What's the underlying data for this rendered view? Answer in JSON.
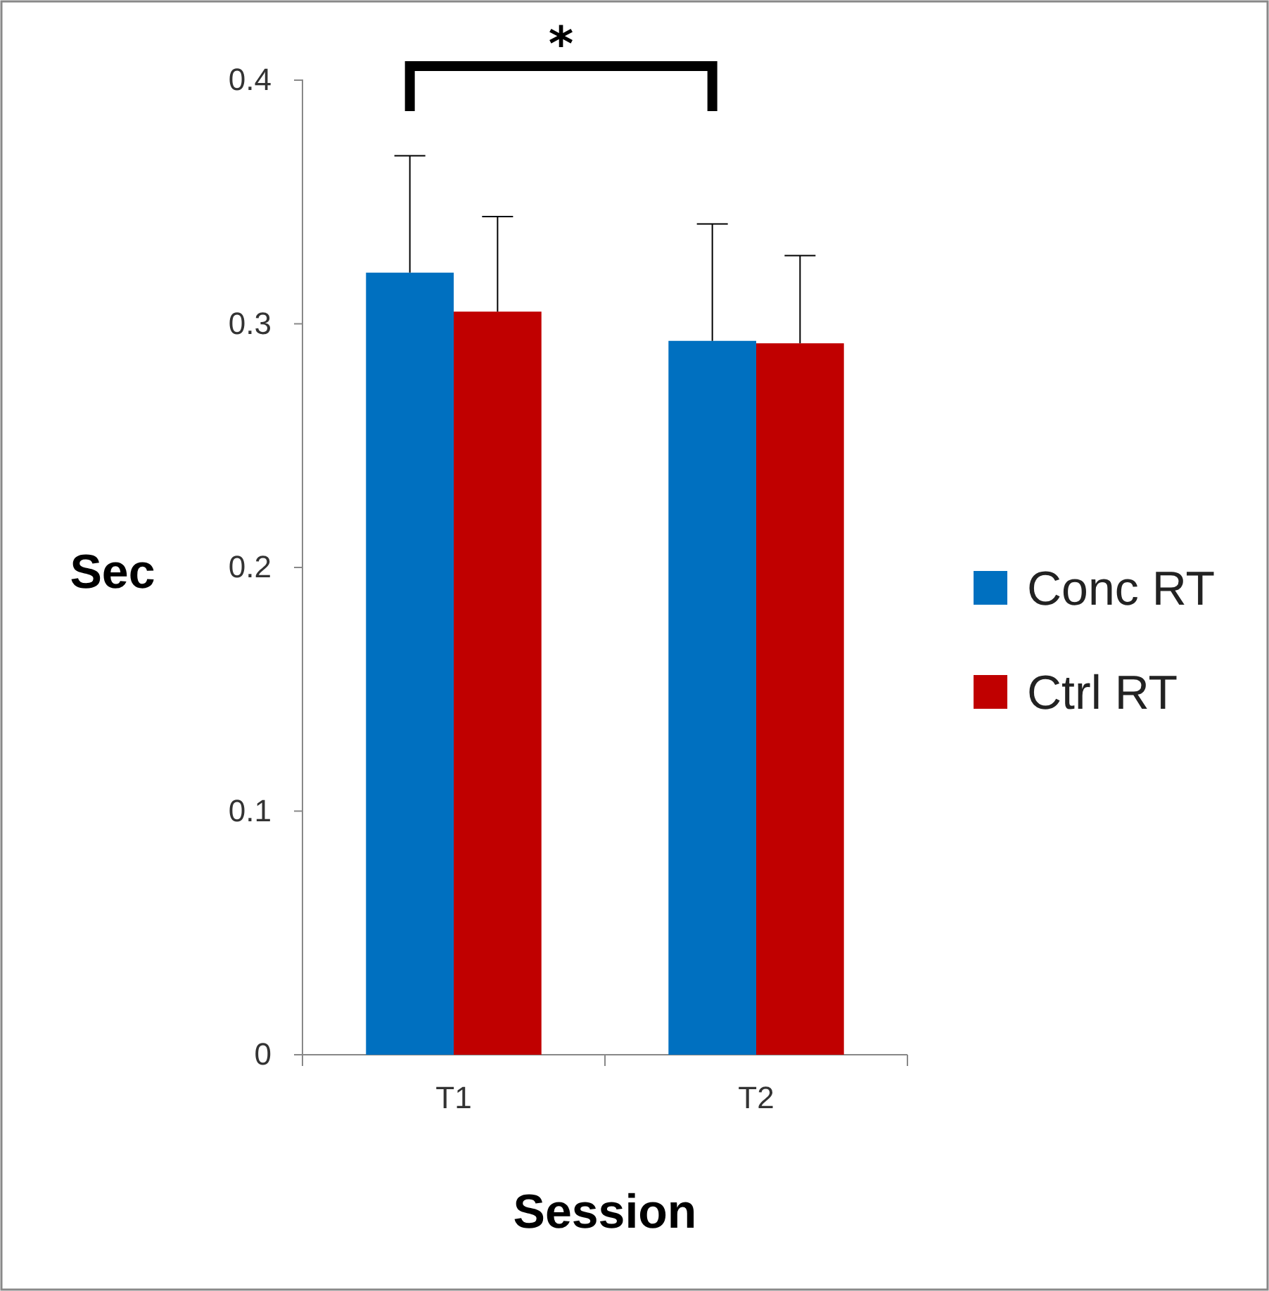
{
  "chart_data": {
    "type": "bar",
    "xlabel": "Session",
    "ylabel": "Sec",
    "categories": [
      "T1",
      "T2"
    ],
    "series": [
      {
        "name": "Conc RT",
        "color": "#0070c0",
        "values": [
          0.321,
          0.293
        ],
        "errors": [
          [
            0.321,
            0.369
          ],
          [
            0.293,
            0.341
          ]
        ]
      },
      {
        "name": "Ctrl RT",
        "color": "#c00000",
        "values": [
          0.305,
          0.292
        ],
        "errors": [
          [
            0.305,
            0.344
          ],
          [
            0.292,
            0.328
          ]
        ]
      }
    ],
    "ylim": [
      0,
      0.4
    ],
    "yticks": [
      0,
      0.1,
      0.2,
      0.3,
      0.4
    ],
    "grid": false,
    "legend": "right",
    "annotations": [
      "*"
    ]
  }
}
